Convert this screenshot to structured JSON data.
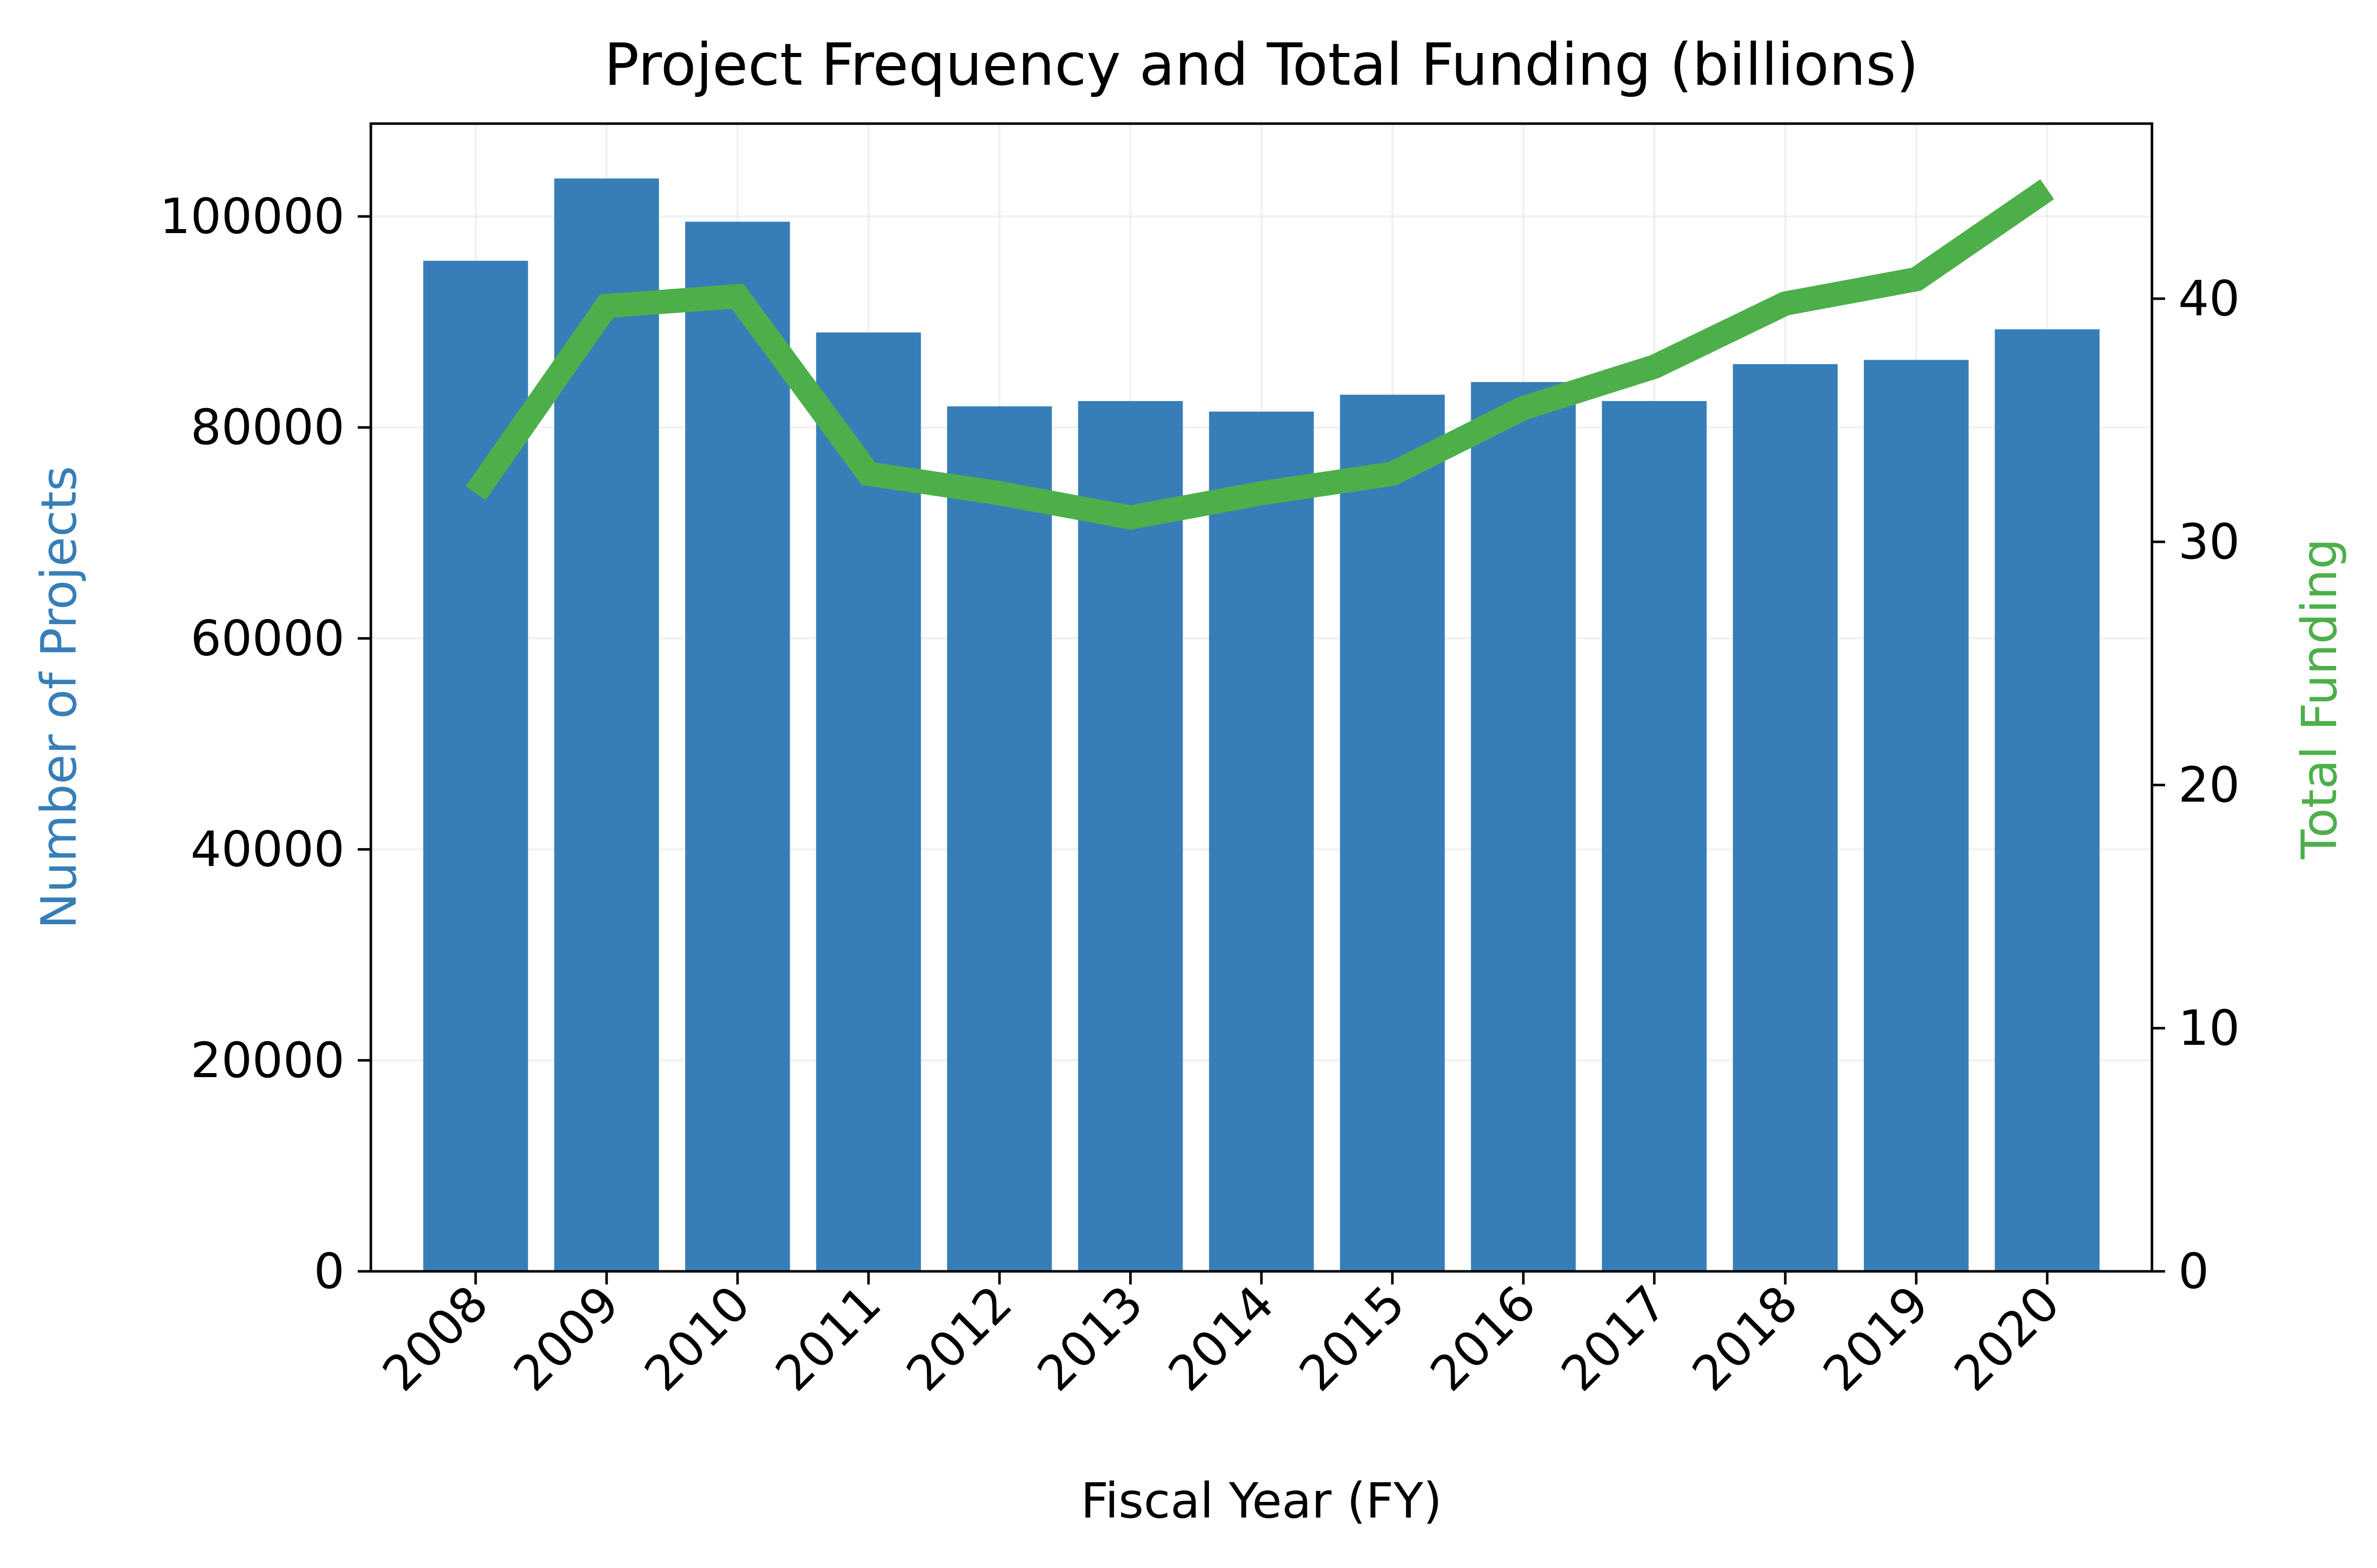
{
  "colors": {
    "bars": "#377eb8",
    "line": "#4daf4a",
    "left_axis_label": "#377eb8",
    "right_axis_label": "#4daf4a",
    "axes": "#000000",
    "grid": "#e6e6e6"
  },
  "chart_data": {
    "type": "bar",
    "title": "Project Frequency and Total Funding (billions)",
    "xlabel": "Fiscal Year (FY)",
    "ylabel": "Number of Projects",
    "y2label": "Total Funding",
    "categories": [
      "2008",
      "2009",
      "2010",
      "2011",
      "2012",
      "2013",
      "2014",
      "2015",
      "2016",
      "2017",
      "2018",
      "2019",
      "2020"
    ],
    "series": [
      {
        "type": "bar",
        "axis": "left",
        "values": [
          95800,
          103600,
          99500,
          89000,
          82000,
          82500,
          81500,
          83100,
          84300,
          82500,
          86000,
          86400,
          89300
        ]
      },
      {
        "type": "line",
        "axis": "right",
        "values": [
          32.0,
          39.7,
          40.1,
          32.8,
          32.0,
          31.0,
          32.0,
          32.8,
          35.5,
          37.2,
          39.8,
          40.8,
          44.5
        ]
      }
    ],
    "ylim": [
      0,
      108800
    ],
    "y2lim": [
      0,
      47.2
    ],
    "yticks": [
      0,
      20000,
      40000,
      60000,
      80000,
      100000
    ],
    "y2ticks": [
      0,
      10,
      20,
      30,
      40
    ],
    "grid": true
  }
}
